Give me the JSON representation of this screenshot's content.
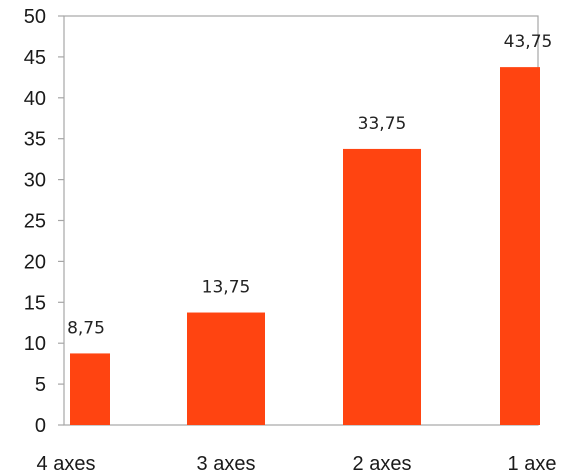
{
  "chart_data": {
    "type": "bar",
    "categories": [
      "4 axes",
      "3 axes",
      "2 axes",
      "1 axe"
    ],
    "values": [
      8.75,
      13.75,
      33.75,
      43.75
    ],
    "data_labels": [
      "8,75",
      "13,75",
      "33,75",
      "43,75"
    ],
    "ylim": [
      0,
      50
    ],
    "yticks": [
      0,
      5,
      10,
      15,
      20,
      25,
      30,
      35,
      40,
      45,
      50
    ],
    "grid": false,
    "legend": "none",
    "colors": {
      "bar": "#ff4411",
      "axis": "#a6a6a6"
    }
  }
}
